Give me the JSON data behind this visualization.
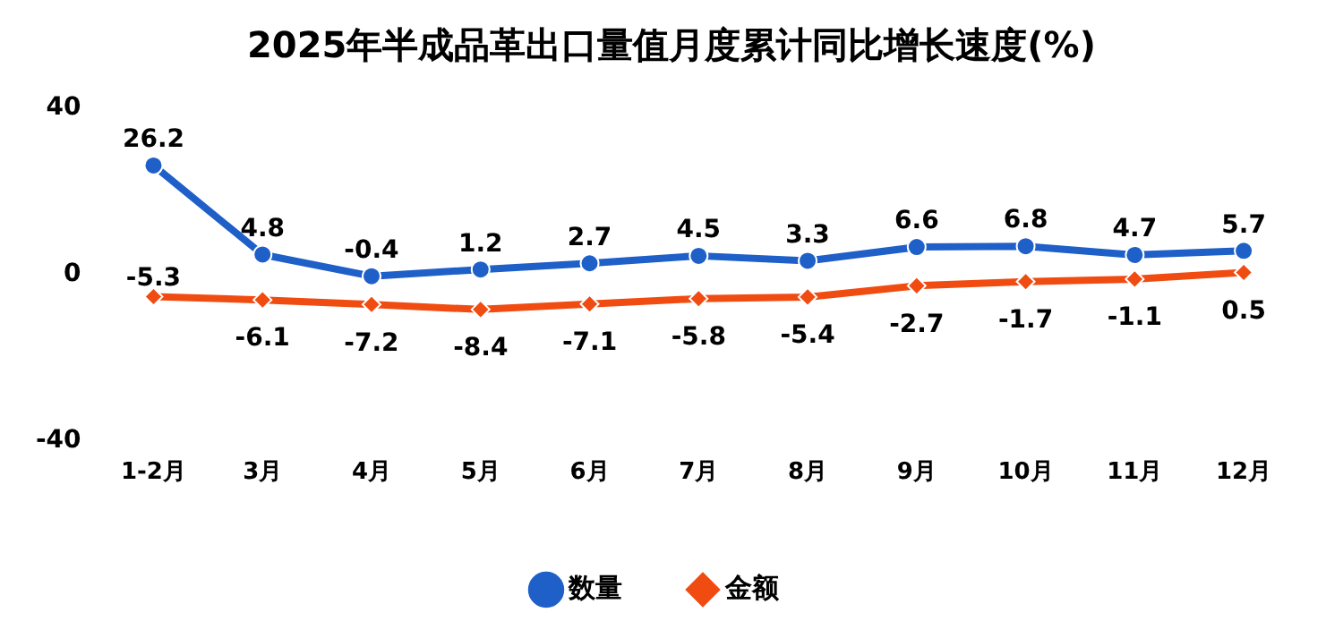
{
  "chart_data": {
    "type": "line",
    "title": "2025年半成品革出口量值月度累计同比增长速度(%)",
    "categories": [
      "1-2月",
      "3月",
      "4月",
      "5月",
      "6月",
      "7月",
      "8月",
      "9月",
      "10月",
      "11月",
      "12月"
    ],
    "series": [
      {
        "name": "数量",
        "color": "#1f5fc8",
        "marker": "circle",
        "values": [
          26.2,
          4.8,
          -0.4,
          1.2,
          2.7,
          4.5,
          3.3,
          6.6,
          6.8,
          4.7,
          5.7
        ]
      },
      {
        "name": "金额",
        "color": "#f04c12",
        "marker": "diamond",
        "values": [
          -5.3,
          -6.1,
          -7.2,
          -8.4,
          -7.1,
          -5.8,
          -5.4,
          -2.7,
          -1.7,
          -1.1,
          0.5
        ]
      }
    ],
    "ylim": [
      -40,
      40
    ],
    "yticks": [
      -40,
      0,
      40
    ],
    "grid": false,
    "legend": "bottom",
    "data_labels": true
  }
}
